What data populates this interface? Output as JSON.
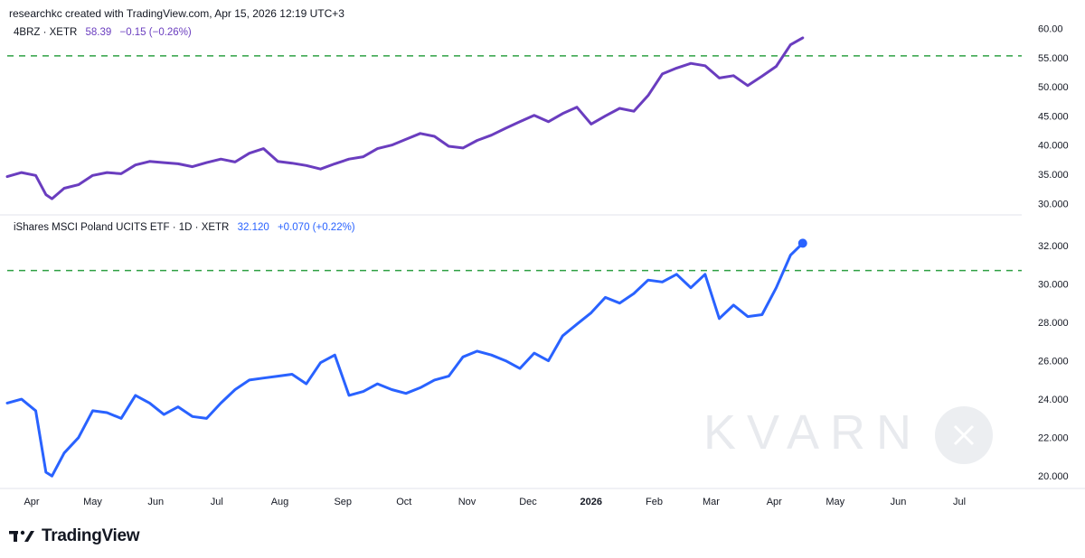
{
  "header": {
    "attribution": "researchkc created with TradingView.com, Apr 15, 2026 12:19 UTC+3"
  },
  "footer": {
    "brand": "TradingView"
  },
  "watermark": {
    "text": "KVARN"
  },
  "colors": {
    "top_series": "#6a3dbf",
    "bottom_series": "#2962ff",
    "level_line": "#2ea043",
    "axis_text": "#131722"
  },
  "x_axis": {
    "labels": [
      {
        "label": "Apr",
        "date": "2025-04-01",
        "bold": false
      },
      {
        "label": "May",
        "date": "2025-05-01",
        "bold": false
      },
      {
        "label": "Jun",
        "date": "2025-06-01",
        "bold": false
      },
      {
        "label": "Jul",
        "date": "2025-07-01",
        "bold": false
      },
      {
        "label": "Aug",
        "date": "2025-08-01",
        "bold": false
      },
      {
        "label": "Sep",
        "date": "2025-09-01",
        "bold": false
      },
      {
        "label": "Oct",
        "date": "2025-10-01",
        "bold": false
      },
      {
        "label": "Nov",
        "date": "2025-11-01",
        "bold": false
      },
      {
        "label": "Dec",
        "date": "2025-12-01",
        "bold": false
      },
      {
        "label": "2026",
        "date": "2026-01-01",
        "bold": true
      },
      {
        "label": "Feb",
        "date": "2026-02-01",
        "bold": false
      },
      {
        "label": "Mar",
        "date": "2026-03-01",
        "bold": false
      },
      {
        "label": "Apr",
        "date": "2026-04-01",
        "bold": false
      },
      {
        "label": "May",
        "date": "2026-05-01",
        "bold": false
      },
      {
        "label": "Jun",
        "date": "2026-06-01",
        "bold": false
      },
      {
        "label": "Jul",
        "date": "2026-07-01",
        "bold": false
      }
    ]
  },
  "chart_data": [
    {
      "type": "line",
      "legend": {
        "symbol": "4BRZ · XETR",
        "price": "58.39",
        "change": "−0.15 (−0.26%)"
      },
      "yticks": [
        30,
        35,
        40,
        45,
        50,
        55,
        60
      ],
      "ytick_labels": [
        "30.000",
        "35.000",
        "40.000",
        "45.000",
        "50.000",
        "55.000",
        "60.00"
      ],
      "ylim": [
        28.5,
        61
      ],
      "level_line": 55.3,
      "series": [
        {
          "points": [
            [
              "2025-03-20",
              34.6
            ],
            [
              "2025-03-27",
              35.3
            ],
            [
              "2025-04-03",
              34.8
            ],
            [
              "2025-04-08",
              31.5
            ],
            [
              "2025-04-11",
              30.8
            ],
            [
              "2025-04-17",
              32.6
            ],
            [
              "2025-04-24",
              33.2
            ],
            [
              "2025-05-01",
              34.8
            ],
            [
              "2025-05-08",
              35.3
            ],
            [
              "2025-05-15",
              35.1
            ],
            [
              "2025-05-22",
              36.6
            ],
            [
              "2025-05-29",
              37.2
            ],
            [
              "2025-06-05",
              37.0
            ],
            [
              "2025-06-12",
              36.8
            ],
            [
              "2025-06-19",
              36.3
            ],
            [
              "2025-06-26",
              37.0
            ],
            [
              "2025-07-03",
              37.6
            ],
            [
              "2025-07-10",
              37.1
            ],
            [
              "2025-07-17",
              38.6
            ],
            [
              "2025-07-24",
              39.4
            ],
            [
              "2025-07-31",
              37.2
            ],
            [
              "2025-08-07",
              36.9
            ],
            [
              "2025-08-14",
              36.5
            ],
            [
              "2025-08-21",
              35.9
            ],
            [
              "2025-08-28",
              36.8
            ],
            [
              "2025-09-04",
              37.6
            ],
            [
              "2025-09-11",
              38.0
            ],
            [
              "2025-09-18",
              39.4
            ],
            [
              "2025-09-25",
              40.0
            ],
            [
              "2025-10-02",
              41.0
            ],
            [
              "2025-10-09",
              42.0
            ],
            [
              "2025-10-16",
              41.5
            ],
            [
              "2025-10-23",
              39.8
            ],
            [
              "2025-10-30",
              39.5
            ],
            [
              "2025-11-06",
              40.8
            ],
            [
              "2025-11-13",
              41.7
            ],
            [
              "2025-11-20",
              42.9
            ],
            [
              "2025-11-27",
              44.0
            ],
            [
              "2025-12-04",
              45.1
            ],
            [
              "2025-12-11",
              44.0
            ],
            [
              "2025-12-18",
              45.4
            ],
            [
              "2025-12-25",
              46.5
            ],
            [
              "2026-01-01",
              43.6
            ],
            [
              "2026-01-08",
              45.0
            ],
            [
              "2026-01-15",
              46.3
            ],
            [
              "2026-01-22",
              45.8
            ],
            [
              "2026-01-29",
              48.5
            ],
            [
              "2026-02-05",
              52.2
            ],
            [
              "2026-02-12",
              53.2
            ],
            [
              "2026-02-19",
              54.0
            ],
            [
              "2026-02-26",
              53.6
            ],
            [
              "2026-03-05",
              51.5
            ],
            [
              "2026-03-12",
              51.9
            ],
            [
              "2026-03-19",
              50.2
            ],
            [
              "2026-03-26",
              51.8
            ],
            [
              "2026-04-02",
              53.5
            ],
            [
              "2026-04-09",
              57.2
            ],
            [
              "2026-04-15",
              58.39
            ]
          ]
        }
      ]
    },
    {
      "type": "line",
      "legend": {
        "symbol": "iShares MSCI Poland UCITS ETF · 1D · XETR",
        "price": "32.120",
        "change": "+0.070 (+0.22%)"
      },
      "yticks": [
        20,
        22,
        24,
        26,
        28,
        30,
        32
      ],
      "ytick_labels": [
        "20.000",
        "22.000",
        "24.000",
        "26.000",
        "28.000",
        "30.000",
        "32.000"
      ],
      "ylim": [
        19.4,
        33.5
      ],
      "level_line": 30.7,
      "series": [
        {
          "points": [
            [
              "2025-03-20",
              23.8
            ],
            [
              "2025-03-27",
              24.0
            ],
            [
              "2025-04-03",
              23.4
            ],
            [
              "2025-04-08",
              20.2
            ],
            [
              "2025-04-11",
              20.0
            ],
            [
              "2025-04-17",
              21.2
            ],
            [
              "2025-04-24",
              22.0
            ],
            [
              "2025-05-01",
              23.4
            ],
            [
              "2025-05-08",
              23.3
            ],
            [
              "2025-05-15",
              23.0
            ],
            [
              "2025-05-22",
              24.2
            ],
            [
              "2025-05-29",
              23.8
            ],
            [
              "2025-06-05",
              23.2
            ],
            [
              "2025-06-12",
              23.6
            ],
            [
              "2025-06-19",
              23.1
            ],
            [
              "2025-06-26",
              23.0
            ],
            [
              "2025-07-03",
              23.8
            ],
            [
              "2025-07-10",
              24.5
            ],
            [
              "2025-07-17",
              25.0
            ],
            [
              "2025-07-24",
              25.1
            ],
            [
              "2025-07-31",
              25.2
            ],
            [
              "2025-08-07",
              25.3
            ],
            [
              "2025-08-14",
              24.8
            ],
            [
              "2025-08-21",
              25.9
            ],
            [
              "2025-08-28",
              26.3
            ],
            [
              "2025-09-04",
              24.2
            ],
            [
              "2025-09-11",
              24.4
            ],
            [
              "2025-09-18",
              24.8
            ],
            [
              "2025-09-25",
              24.5
            ],
            [
              "2025-10-02",
              24.3
            ],
            [
              "2025-10-09",
              24.6
            ],
            [
              "2025-10-16",
              25.0
            ],
            [
              "2025-10-23",
              25.2
            ],
            [
              "2025-10-30",
              26.2
            ],
            [
              "2025-11-06",
              26.5
            ],
            [
              "2025-11-13",
              26.3
            ],
            [
              "2025-11-20",
              26.0
            ],
            [
              "2025-11-27",
              25.6
            ],
            [
              "2025-12-04",
              26.4
            ],
            [
              "2025-12-11",
              26.0
            ],
            [
              "2025-12-18",
              27.3
            ],
            [
              "2025-12-25",
              27.9
            ],
            [
              "2026-01-01",
              28.5
            ],
            [
              "2026-01-08",
              29.3
            ],
            [
              "2026-01-15",
              29.0
            ],
            [
              "2026-01-22",
              29.5
            ],
            [
              "2026-01-29",
              30.2
            ],
            [
              "2026-02-05",
              30.1
            ],
            [
              "2026-02-12",
              30.5
            ],
            [
              "2026-02-19",
              29.8
            ],
            [
              "2026-02-26",
              30.5
            ],
            [
              "2026-03-05",
              28.2
            ],
            [
              "2026-03-12",
              28.9
            ],
            [
              "2026-03-19",
              28.3
            ],
            [
              "2026-03-26",
              28.4
            ],
            [
              "2026-04-02",
              29.8
            ],
            [
              "2026-04-09",
              31.5
            ],
            [
              "2026-04-15",
              32.12
            ]
          ]
        }
      ]
    }
  ]
}
